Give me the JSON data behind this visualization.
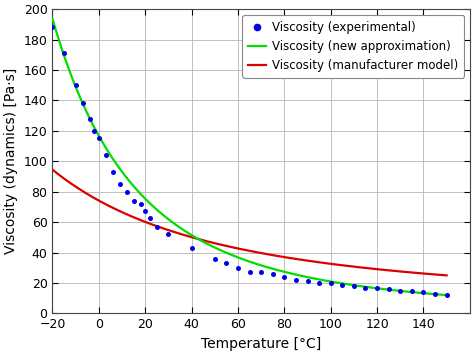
{
  "xlabel": "Temperature [°C]",
  "ylabel": "Viscosity (dynamics) [Pa·s]",
  "xlim": [
    -20,
    160
  ],
  "ylim": [
    0,
    200
  ],
  "xticks": [
    -20,
    0,
    20,
    40,
    60,
    80,
    100,
    120,
    140
  ],
  "yticks": [
    0,
    20,
    40,
    60,
    80,
    100,
    120,
    140,
    160,
    180,
    200
  ],
  "exp_x": [
    -20,
    -15,
    -10,
    -7,
    -4,
    -2,
    0,
    3,
    6,
    9,
    12,
    15,
    18,
    20,
    22,
    25,
    30,
    40,
    50,
    55,
    60,
    65,
    70,
    75,
    80,
    85,
    90,
    95,
    100,
    105,
    110,
    115,
    120,
    125,
    130,
    135,
    140,
    145,
    150
  ],
  "exp_y": [
    188,
    171,
    150,
    138,
    128,
    120,
    115,
    104,
    93,
    85,
    80,
    74,
    72,
    67,
    63,
    57,
    52,
    43,
    36,
    33,
    30,
    27,
    27,
    26,
    24,
    22,
    21,
    20,
    20,
    19,
    18,
    17,
    17,
    16,
    15,
    15,
    14,
    13,
    12
  ],
  "a_new": 0.192,
  "b_new": 1751.0,
  "a_man": 3.45,
  "b_man": 838.0,
  "T_start": -20,
  "T_end": 150,
  "background_color": "#ffffff",
  "grid_color": "#b5b5b5",
  "exp_color": "#0000ee",
  "new_approx_color": "#00dd00",
  "manuf_color": "#dd0000",
  "legend_labels": [
    "Viscosity (experimental)",
    "Viscosity (new approximation)",
    "Viscosity (manufacturer model)"
  ],
  "legend_fontsize": 8.5,
  "axis_fontsize": 10,
  "tick_fontsize": 9
}
